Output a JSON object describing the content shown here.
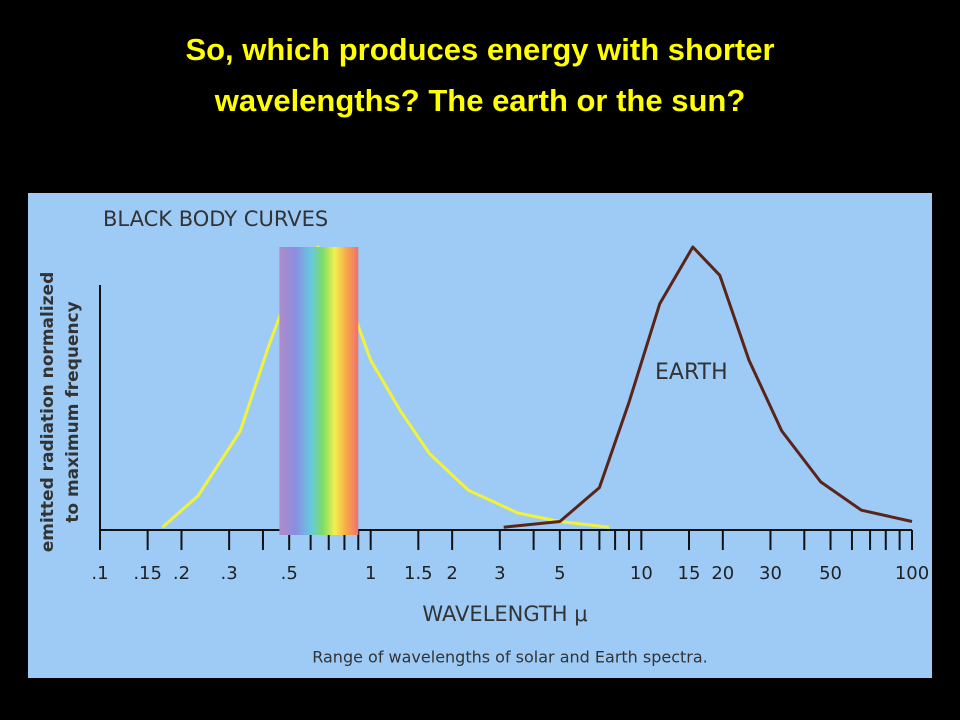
{
  "slide_title": [
    "So, which produces energy with shorter",
    "wavelengths?  The earth or the sun?"
  ],
  "chart_data": {
    "type": "line",
    "title": "BLACK BODY CURVES",
    "ylabel": [
      "emitted radiation normalized",
      "to maximum frequency"
    ],
    "xlabel": "WAVELENGTH  μ",
    "caption": "Range of wavelengths of solar and Earth spectra.",
    "log_x": true,
    "xlim": [
      0.1,
      100
    ],
    "ylim": [
      0,
      1
    ],
    "xticks": [
      {
        "value": 0.1,
        "label": ".1"
      },
      {
        "value": 0.15,
        "label": ".15"
      },
      {
        "value": 0.2,
        "label": ".2"
      },
      {
        "value": 0.3,
        "label": ".3"
      },
      {
        "value": 0.5,
        "label": ".5"
      },
      1,
      1.5,
      2,
      3,
      5,
      10,
      15,
      20,
      30,
      50,
      100
    ],
    "xminorticks": [
      0.4,
      0.6,
      0.7,
      0.8,
      0.9,
      4,
      6,
      7,
      8,
      9,
      40,
      60,
      70,
      80,
      90
    ],
    "visible_band": [
      0.46,
      0.9
    ],
    "series": [
      {
        "color": "#f2f23a",
        "x": [
          0.17,
          0.23,
          0.33,
          0.42,
          0.54,
          0.64,
          0.77,
          1.0,
          1.29,
          1.65,
          2.3,
          3.5,
          5,
          7.6
        ],
        "values": [
          0.01,
          0.12,
          0.35,
          0.65,
          0.93,
          1.0,
          0.9,
          0.6,
          0.42,
          0.27,
          0.14,
          0.06,
          0.03,
          0.01
        ]
      },
      {
        "name": "EARTH",
        "color": "#5a2418",
        "x": [
          3.1,
          5,
          7,
          9,
          11.7,
          15.5,
          19.5,
          25,
          33,
          46,
          65,
          100
        ],
        "values": [
          0.01,
          0.03,
          0.15,
          0.45,
          0.8,
          1.0,
          0.9,
          0.6,
          0.35,
          0.17,
          0.07,
          0.03
        ]
      }
    ]
  }
}
